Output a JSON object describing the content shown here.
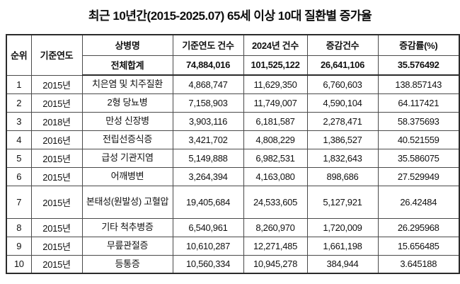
{
  "page": {
    "background": "#ffffff",
    "text_color": "#111111",
    "border_color": "#2b2b2b"
  },
  "title": "최근 10년간(2015-2025.07) 65세 이상 10대 질환별 증가율",
  "table": {
    "columns": [
      "순위",
      "기준연도",
      "상병명",
      "기준연도 건수",
      "2024년 건수",
      "증감건수",
      "증감률(%)"
    ],
    "total": {
      "label": "전체합계",
      "base_count": "74,884,016",
      "count_2024": "101,525,122",
      "change_count": "26,641,106",
      "change_rate": "35.576492"
    },
    "rows": [
      {
        "rank": "1",
        "base_year": "2015년",
        "disease": "치은염 및 치주질환",
        "base_count": "4,868,747",
        "count_2024": "11,629,350",
        "change_count": "6,760,603",
        "change_rate": "138.857143"
      },
      {
        "rank": "2",
        "base_year": "2015년",
        "disease": "2형 당뇨병",
        "base_count": "7,158,903",
        "count_2024": "11,749,007",
        "change_count": "4,590,104",
        "change_rate": "64.117421"
      },
      {
        "rank": "3",
        "base_year": "2018년",
        "disease": "만성 신장병",
        "base_count": "3,903,116",
        "count_2024": "6,181,587",
        "change_count": "2,278,471",
        "change_rate": "58.375693"
      },
      {
        "rank": "4",
        "base_year": "2016년",
        "disease": "전립선증식증",
        "base_count": "3,421,702",
        "count_2024": "4,808,229",
        "change_count": "1,386,527",
        "change_rate": "40.521559"
      },
      {
        "rank": "5",
        "base_year": "2015년",
        "disease": "급성 기관지염",
        "base_count": "5,149,888",
        "count_2024": "6,982,531",
        "change_count": "1,832,643",
        "change_rate": "35.586075"
      },
      {
        "rank": "6",
        "base_year": "2015년",
        "disease": "어깨병변",
        "base_count": "3,264,394",
        "count_2024": "4,163,080",
        "change_count": "898,686",
        "change_rate": "27.529949"
      },
      {
        "rank": "7",
        "base_year": "2015년",
        "disease": "본태성(원발성)\n고혈압",
        "base_count": "19,405,684",
        "count_2024": "24,533,605",
        "change_count": "5,127,921",
        "change_rate": "26.42484"
      },
      {
        "rank": "8",
        "base_year": "2015년",
        "disease": "기타 척추병증",
        "base_count": "6,540,961",
        "count_2024": "8,260,970",
        "change_count": "1,720,009",
        "change_rate": "26.295968"
      },
      {
        "rank": "9",
        "base_year": "2015년",
        "disease": "무릎관절증",
        "base_count": "10,610,287",
        "count_2024": "12,271,485",
        "change_count": "1,661,198",
        "change_rate": "15.656485"
      },
      {
        "rank": "10",
        "base_year": "2015년",
        "disease": "등통증",
        "base_count": "10,560,334",
        "count_2024": "10,945,278",
        "change_count": "384,944",
        "change_rate": "3.645188"
      }
    ]
  }
}
